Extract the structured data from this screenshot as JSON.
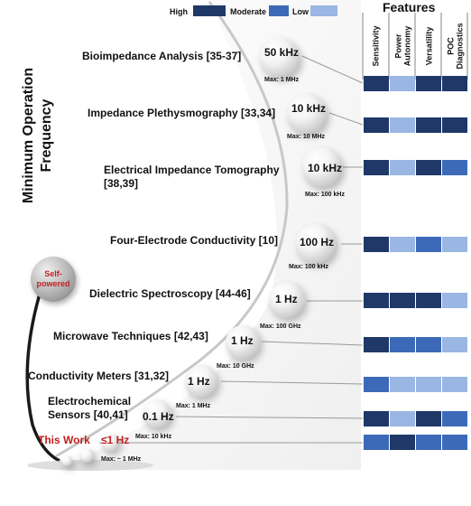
{
  "title_lines": [
    "Minimum Operation",
    "Frequency"
  ],
  "legend": [
    {
      "label": "High",
      "color": "#1f3868"
    },
    {
      "label": "Moderate",
      "color": "#3d6ab8"
    },
    {
      "label": "Low",
      "color": "#9ab6e2"
    }
  ],
  "features": {
    "title": "Features",
    "columns": [
      [
        "Sensitivity"
      ],
      [
        "Power",
        "Autonomy"
      ],
      [
        "Versatility"
      ],
      [
        "POC",
        "Diagnostics"
      ]
    ]
  },
  "self_powered": [
    "Self-",
    "powered"
  ],
  "rows": [
    {
      "tech": [
        "Bioimpedance Analysis [35-37]"
      ],
      "freq": "50 kHz",
      "max": "Max: 1 MHz",
      "ratings": [
        "High",
        "Low",
        "High",
        "High"
      ]
    },
    {
      "tech": [
        "Impedance Plethysmography [33,34]"
      ],
      "freq": "10 kHz",
      "max": "Max: 10 MHz",
      "ratings": [
        "High",
        "Low",
        "High",
        "High"
      ]
    },
    {
      "tech": [
        "Electrical Impedance Tomography",
        "[38,39]"
      ],
      "freq": "10 kHz",
      "max": "Max: 100 kHz",
      "ratings": [
        "High",
        "Low",
        "High",
        "Moderate"
      ]
    },
    {
      "tech": [
        "Four-Electrode Conductivity [10]"
      ],
      "freq": "100 Hz",
      "max": "Max: 100 kHz",
      "ratings": [
        "High",
        "Low",
        "Moderate",
        "Low"
      ]
    },
    {
      "tech": [
        "Dielectric Spectroscopy [44-46]"
      ],
      "freq": "1 Hz",
      "max": "Max: 100 GHz",
      "ratings": [
        "High",
        "High",
        "High",
        "Low"
      ]
    },
    {
      "tech": [
        "Microwave Techniques [42,43]"
      ],
      "freq": "1 Hz",
      "max": "Max: 10 GHz",
      "ratings": [
        "High",
        "Moderate",
        "Moderate",
        "Low"
      ]
    },
    {
      "tech": [
        "Conductivity Meters [31,32]"
      ],
      "freq": "1 Hz",
      "max": "Max: 1 MHz",
      "ratings": [
        "Moderate",
        "Low",
        "Low",
        "Low"
      ]
    },
    {
      "tech": [
        "Electrochemical",
        "Sensors [40,41]"
      ],
      "freq": "0.1 Hz",
      "max": "Max: 10 kHz",
      "ratings": [
        "High",
        "Low",
        "High",
        "Moderate"
      ]
    },
    {
      "tech": [
        "This Work"
      ],
      "freq": "≤1 Hz",
      "max": "Max: ~ 1 MHz",
      "ratings": [
        "Moderate",
        "High",
        "Moderate",
        "Moderate"
      ]
    }
  ]
}
